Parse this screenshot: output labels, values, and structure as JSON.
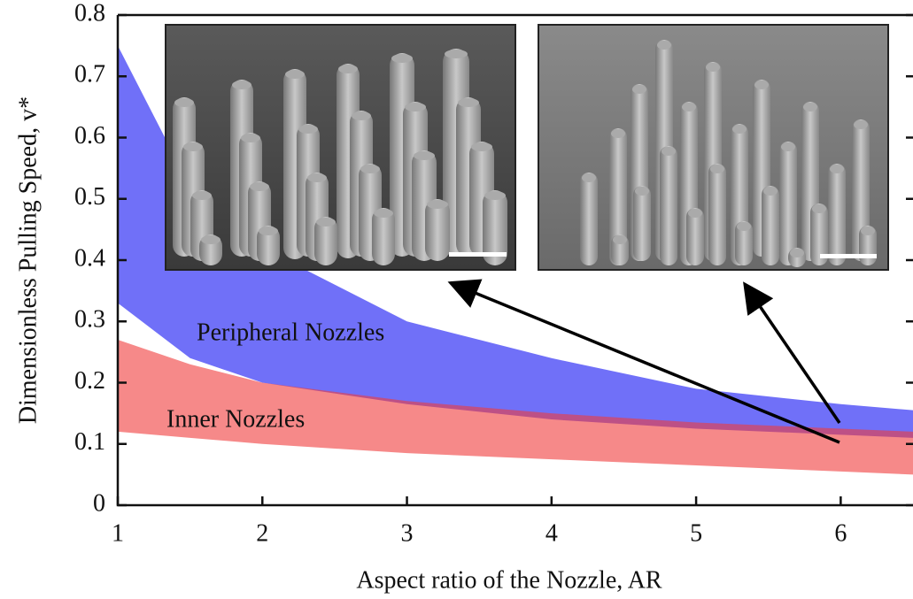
{
  "chart_data": {
    "type": "band",
    "xlabel": "Aspect ratio of the Nozzle, AR",
    "ylabel": "Dimensionless Pulling Speed, v*",
    "x": [
      1,
      1.5,
      2,
      3,
      4,
      5,
      6,
      6.5
    ],
    "series": [
      {
        "name": "Peripheral Nozzles",
        "color": "#7070f8",
        "opacity": 1,
        "upper": [
          0.75,
          0.52,
          0.42,
          0.3,
          0.24,
          0.19,
          0.165,
          0.155
        ],
        "lower": [
          0.33,
          0.24,
          0.2,
          0.165,
          0.14,
          0.125,
          0.115,
          0.11
        ]
      },
      {
        "name": "Inner Nozzles",
        "color": "#f03a3a",
        "opacity": 0.6,
        "upper": [
          0.27,
          0.23,
          0.2,
          0.17,
          0.15,
          0.135,
          0.125,
          0.12
        ],
        "lower": [
          0.12,
          0.11,
          0.1,
          0.085,
          0.075,
          0.065,
          0.055,
          0.05
        ]
      }
    ],
    "xlim": [
      1,
      6.5
    ],
    "xticks": [
      1,
      2,
      3,
      4,
      5,
      6
    ],
    "ylim": [
      0,
      0.8
    ],
    "yticks": [
      0,
      0.1,
      0.2,
      0.3,
      0.4,
      0.5,
      0.6,
      0.7,
      0.8
    ]
  }
}
